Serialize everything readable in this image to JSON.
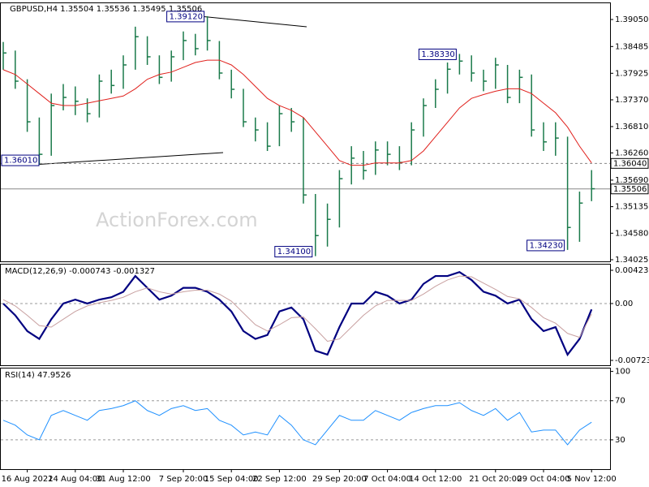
{
  "chart_data": [
    {
      "type": "ohlc",
      "title": "GBPUSD,H4  1.35504 1.35536 1.35495 1.35506",
      "watermark": "ActionForex.com",
      "color": "#1a7a4a",
      "high": [
        1.3858,
        1.384,
        1.378,
        1.37,
        1.375,
        1.377,
        1.3765,
        1.374,
        1.379,
        1.38,
        1.383,
        1.389,
        1.387,
        1.383,
        1.384,
        1.388,
        1.3875,
        1.3912,
        1.386,
        1.38,
        1.376,
        1.37,
        1.369,
        1.3725,
        1.372,
        1.37,
        1.354,
        1.352,
        1.359,
        1.364,
        1.363,
        1.365,
        1.365,
        1.364,
        1.369,
        1.374,
        1.378,
        1.3815,
        1.3833,
        1.383,
        1.38,
        1.3825,
        1.381,
        1.38,
        1.379,
        1.369,
        1.369,
        1.366,
        1.3545,
        1.359
      ],
      "low": [
        1.38,
        1.376,
        1.367,
        1.3601,
        1.362,
        1.3715,
        1.3705,
        1.369,
        1.37,
        1.375,
        1.376,
        1.38,
        1.381,
        1.377,
        1.3775,
        1.382,
        1.383,
        1.384,
        1.378,
        1.374,
        1.368,
        1.365,
        1.363,
        1.364,
        1.367,
        1.352,
        1.341,
        1.343,
        1.347,
        1.356,
        1.357,
        1.358,
        1.36,
        1.359,
        1.36,
        1.366,
        1.372,
        1.375,
        1.379,
        1.3775,
        1.3755,
        1.376,
        1.373,
        1.373,
        1.366,
        1.363,
        1.362,
        1.3423,
        1.344,
        1.3525
      ],
      "close": [
        1.3835,
        1.3776,
        1.3691,
        1.3623,
        1.3725,
        1.3742,
        1.3734,
        1.3708,
        1.3776,
        1.3767,
        1.381,
        1.3869,
        1.3827,
        1.3784,
        1.3827,
        1.3861,
        1.3844,
        1.3861,
        1.3793,
        1.3759,
        1.3691,
        1.3674,
        1.364,
        1.3708,
        1.3691,
        1.3538,
        1.3453,
        1.3487,
        1.3572,
        1.3615,
        1.3589,
        1.3632,
        1.3623,
        1.3606,
        1.3674,
        1.3725,
        1.3759,
        1.3801,
        1.3818,
        1.3793,
        1.3776,
        1.381,
        1.3742,
        1.3784,
        1.3674,
        1.3649,
        1.3657,
        1.347,
        1.3521,
        1.3551
      ],
      "overlay": {
        "color": "#e0201c",
        "values": [
          1.38,
          1.379,
          1.377,
          1.375,
          1.373,
          1.3725,
          1.3725,
          1.373,
          1.3735,
          1.374,
          1.3745,
          1.376,
          1.378,
          1.379,
          1.3795,
          1.3805,
          1.3815,
          1.382,
          1.382,
          1.381,
          1.379,
          1.3765,
          1.374,
          1.3725,
          1.3715,
          1.37,
          1.367,
          1.364,
          1.361,
          1.36,
          1.36,
          1.3605,
          1.3605,
          1.3605,
          1.361,
          1.363,
          1.366,
          1.369,
          1.372,
          1.374,
          1.3748,
          1.3755,
          1.376,
          1.376,
          1.375,
          1.373,
          1.371,
          1.368,
          1.364,
          1.3605
        ]
      },
      "ylim": [
        1.33991,
        1.3939
      ],
      "yticks": [
        {
          "value": 1.3905,
          "label": "1.39050"
        },
        {
          "value": 1.38485,
          "label": "1.38485"
        },
        {
          "value": 1.37925,
          "label": "1.37925"
        },
        {
          "value": 1.3737,
          "label": "1.37370"
        },
        {
          "value": 1.3681,
          "label": "1.36810"
        },
        {
          "value": 1.3626,
          "label": "1.36260"
        },
        {
          "value": 1.3569,
          "label": "1.35690"
        },
        {
          "value": 1.35135,
          "label": "1.35135"
        },
        {
          "value": 1.3458,
          "label": "1.34580"
        },
        {
          "value": 1.34025,
          "label": "1.34025"
        }
      ],
      "price_lines": [
        {
          "value": 1.3604,
          "label": "1.36040"
        },
        {
          "value": 1.35506,
          "label": "1.35506"
        }
      ],
      "annotations": [
        {
          "value": 1.3912,
          "label": "1.39120"
        },
        {
          "value": 1.3833,
          "label": "1.38330"
        },
        {
          "value": 1.3601,
          "label": "1.36010"
        },
        {
          "value": 1.341,
          "label": "1.34100"
        },
        {
          "value": 1.3423,
          "label": "1.34230"
        }
      ]
    },
    {
      "type": "line",
      "title": "MACD(12,26,9) -0.000743 -0.001327",
      "series": [
        {
          "color": "#000080",
          "values": [
            0,
            -0.0015,
            -0.0035,
            -0.0045,
            -0.002,
            0,
            0.0005,
            0,
            0.0005,
            0.0008,
            0.0015,
            0.0035,
            0.002,
            0.0005,
            0.001,
            0.002,
            0.002,
            0.0015,
            0.0005,
            -0.001,
            -0.0035,
            -0.0045,
            -0.004,
            -0.001,
            -0.0005,
            -0.002,
            -0.006,
            -0.0065,
            -0.003,
            0,
            0,
            0.0015,
            0.001,
            0,
            0.0005,
            0.0025,
            0.0035,
            0.0035,
            0.004,
            0.003,
            0.0015,
            0.001,
            0,
            0.0005,
            -0.002,
            -0.0035,
            -0.003,
            -0.0065,
            -0.0045,
            -0.000743
          ]
        },
        {
          "color": "#c8a0a0",
          "values": [
            0.0005,
            -0.0003,
            -0.0015,
            -0.0028,
            -0.003,
            -0.002,
            -0.001,
            -0.0003,
            0.0001,
            0.0004,
            0.0008,
            0.0015,
            0.002,
            0.0015,
            0.0012,
            0.0015,
            0.0017,
            0.0017,
            0.0012,
            0.0003,
            -0.0012,
            -0.0027,
            -0.0035,
            -0.0027,
            -0.0018,
            -0.0017,
            -0.0032,
            -0.0048,
            -0.0045,
            -0.003,
            -0.0015,
            -0.0003,
            0.0004,
            0.0004,
            0.0004,
            0.0012,
            0.0022,
            0.003,
            0.0035,
            0.0034,
            0.0026,
            0.0018,
            0.0009,
            0.0006,
            -0.0005,
            -0.0018,
            -0.0025,
            -0.0038,
            -0.0043,
            -0.001327
          ]
        }
      ],
      "ylim": [
        -0.00785,
        0.004954
      ],
      "yticks": [
        0.004231,
        {
          "value": 0,
          "label": "0.00"
        },
        -0.00723
      ],
      "ref_lines": [
        0
      ]
    },
    {
      "type": "line",
      "title": "RSI(14) 47.9526",
      "categories": [
        null,
        null,
        "16 Aug 2021",
        null,
        null,
        null,
        "24 Aug 04:00",
        null,
        null,
        null,
        "31 Aug 12:00",
        null,
        null,
        null,
        null,
        "7 Sep 20:00",
        null,
        null,
        null,
        "15 Sep 04:00",
        null,
        null,
        null,
        "22 Sep 12:00",
        null,
        null,
        null,
        null,
        "29 Sep 20:00",
        null,
        null,
        null,
        "7 Oct 04:00",
        null,
        null,
        null,
        "14 Oct 12:00",
        null,
        null,
        null,
        null,
        "21 Oct 20:00",
        null,
        null,
        null,
        "29 Oct 04:00",
        null,
        null,
        null,
        "5 Nov 12:00"
      ],
      "series": [
        {
          "color": "#1e90ff",
          "values": [
            50,
            45,
            35,
            30,
            55,
            60,
            55,
            50,
            60,
            62,
            65,
            70,
            60,
            55,
            62,
            65,
            60,
            62,
            50,
            45,
            35,
            38,
            35,
            55,
            45,
            30,
            25,
            40,
            55,
            50,
            50,
            60,
            55,
            50,
            58,
            62,
            65,
            65,
            68,
            60,
            55,
            62,
            50,
            58,
            38,
            40,
            40,
            25,
            40,
            48
          ]
        }
      ],
      "ylim": [
        0,
        103
      ],
      "yticks": [
        30,
        70,
        100
      ],
      "ref_lines": [
        30,
        70
      ]
    }
  ]
}
